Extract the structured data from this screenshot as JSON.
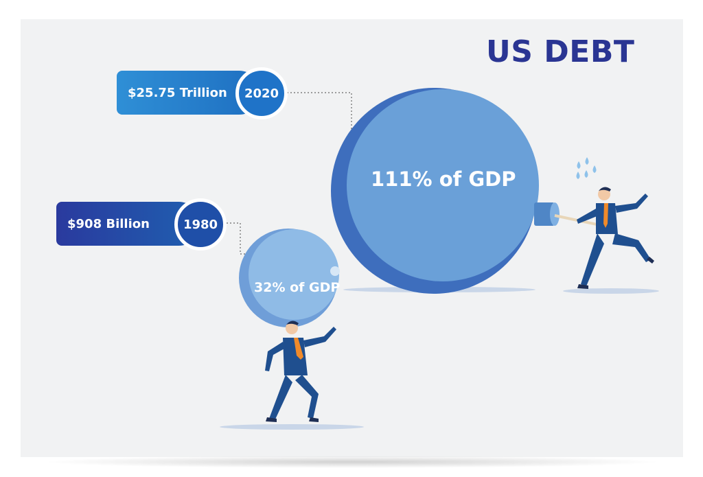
{
  "title": "US DEBT",
  "entries": [
    {
      "year": "2020",
      "amount": "$25.75 Trillion",
      "gdp_label": "111% of GDP"
    },
    {
      "year": "1980",
      "amount": "$908 Billion",
      "gdp_label": "32% of GDP"
    }
  ],
  "colors": {
    "title": "#2a3593",
    "big_ball": "#6aa0d8",
    "small_ball": "#8fbbe6",
    "suit": "#1f4f8f",
    "tie": "#f08a2a",
    "background": "#f1f2f3"
  },
  "icons": [
    "businessman-pushing-ball",
    "businessman-carrying-ball",
    "sweat-drops-icon"
  ]
}
